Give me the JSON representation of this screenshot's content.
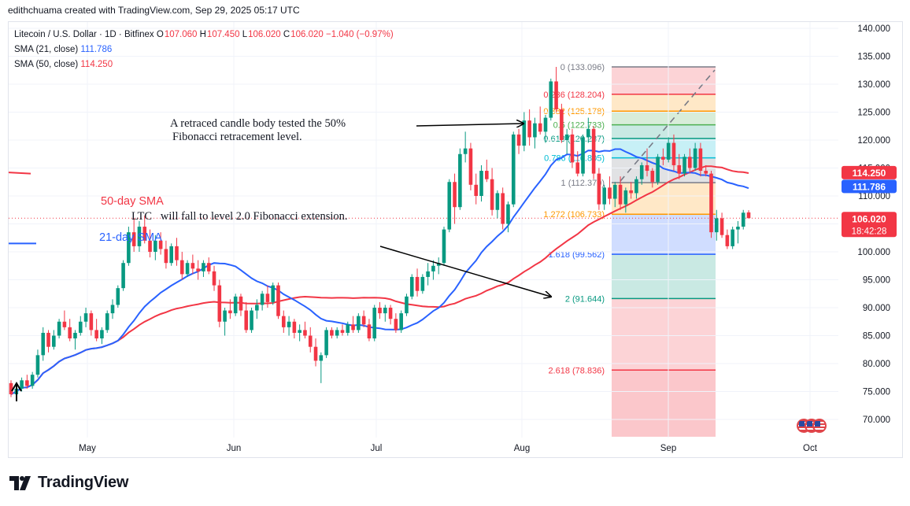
{
  "header": {
    "credit": "edithchuama created with TradingView.com, Sep 29, 2025 05:17 UTC"
  },
  "legend": {
    "symbol": "Litecoin / U.S. Dollar · 1D · Bitfinex",
    "ohlc": [
      {
        "k": "O",
        "v": "107.060"
      },
      {
        "k": "H",
        "v": "107.450"
      },
      {
        "k": "L",
        "v": "106.020"
      },
      {
        "k": "C",
        "v": "106.020"
      }
    ],
    "change": "−1.040 (−0.97%)",
    "sma21_label": "SMA (21, close)",
    "sma21_value": "111.786",
    "sma50_label": "SMA (50, close)",
    "sma50_value": "114.250"
  },
  "brand": {
    "name": "TradingView"
  },
  "colors": {
    "up": "#089981",
    "down": "#f23645",
    "sma21": "#2962ff",
    "sma50": "#f23645",
    "price_tag": "#f23645"
  },
  "chart_data": {
    "type": "candlestick",
    "y_axis_ticks": [
      "140.000",
      "135.000",
      "130.000",
      "125.000",
      "120.000",
      "115.000",
      "110.000",
      "105.000",
      "100.000",
      "95.000",
      "90.000",
      "85.000",
      "80.000",
      "75.000",
      "70.000"
    ],
    "ylim": [
      67,
      141
    ],
    "x_axis_ticks": [
      "May",
      "Jun",
      "Jul",
      "Aug",
      "Sep",
      "Oct"
    ],
    "price_labels": [
      {
        "name": "SMA 50",
        "value": "114.250",
        "color": "#f23645"
      },
      {
        "name": "SMA 21",
        "value": "111.786",
        "color": "#2962ff"
      },
      {
        "name": "Last",
        "value": "106.020",
        "countdown": "18:42:28",
        "color": "#f23645"
      }
    ],
    "fibonacci": [
      {
        "ratio": "0",
        "price": "133.096",
        "label": "0 (133.096)",
        "color": "#787b86"
      },
      {
        "ratio": "0.236",
        "price": "128.204",
        "label": "0.236 (128.204)",
        "color": "#f23645"
      },
      {
        "ratio": "0.382",
        "price": "125.178",
        "label": "0.382 (125.178)",
        "color": "#ff9800"
      },
      {
        "ratio": "0.5",
        "price": "122.733",
        "label": "0.5 (122.733)",
        "color": "#4caf50"
      },
      {
        "ratio": "0.618",
        "price": "120.287",
        "label": "0.618 (120.287)",
        "color": "#089981"
      },
      {
        "ratio": "0.786",
        "price": "116.805",
        "label": "0.786 (116.805)",
        "color": "#00bcd4"
      },
      {
        "ratio": "1",
        "price": "112.370",
        "label": "1 (112.370)",
        "color": "#787b86"
      },
      {
        "ratio": "1.272",
        "price": "106.733",
        "label": "1.272 (106.733)",
        "color": "#ff9800"
      },
      {
        "ratio": "1.618",
        "price": "99.562",
        "label": "1.618 (99.562)",
        "color": "#2962ff"
      },
      {
        "ratio": "2",
        "price": "91.644",
        "label": "2 (91.644)",
        "color": "#089981"
      },
      {
        "ratio": "2.618",
        "price": "78.836",
        "label": "2.618 (78.836)",
        "color": "#f23645"
      }
    ],
    "annotations": [
      {
        "text": "A retraced candle body tested the 50% Fibonacci retracement level.",
        "lines": [
          "A retraced candle body tested the 50%",
          "Fibonacci retracement level."
        ]
      },
      {
        "text": "LTC   will fall to level 2.0 Fibonacci extension."
      },
      {
        "text": "50-day SMA",
        "color": "#f23645"
      },
      {
        "text": "21-day SMA",
        "color": "#2962ff"
      }
    ],
    "candles": [
      [
        76.5,
        77.0,
        74.0,
        74.5
      ],
      [
        74.5,
        76.0,
        73.5,
        75.5
      ],
      [
        75.5,
        77.5,
        75.0,
        77.0
      ],
      [
        77.0,
        78.0,
        75.5,
        76.0
      ],
      [
        76.0,
        78.5,
        75.5,
        78.0
      ],
      [
        78.0,
        82.5,
        77.5,
        81.5
      ],
      [
        81.5,
        86.5,
        80.5,
        85.5
      ],
      [
        85.5,
        86.0,
        82.0,
        83.0
      ],
      [
        83.0,
        86.0,
        82.5,
        85.0
      ],
      [
        85.0,
        88.0,
        84.5,
        87.5
      ],
      [
        87.5,
        89.5,
        86.0,
        86.5
      ],
      [
        86.5,
        88.0,
        84.0,
        84.5
      ],
      [
        84.5,
        86.0,
        82.5,
        85.5
      ],
      [
        85.5,
        88.5,
        85.0,
        87.5
      ],
      [
        87.5,
        90.0,
        86.5,
        89.0
      ],
      [
        89.0,
        89.5,
        85.0,
        86.0
      ],
      [
        86.0,
        88.0,
        84.0,
        84.5
      ],
      [
        84.5,
        86.5,
        83.5,
        86.0
      ],
      [
        86.0,
        89.5,
        85.5,
        89.0
      ],
      [
        89.0,
        91.5,
        88.0,
        90.5
      ],
      [
        90.5,
        94.0,
        90.0,
        93.5
      ],
      [
        93.5,
        98.5,
        93.0,
        98.0
      ],
      [
        98.0,
        104.5,
        97.5,
        103.5
      ],
      [
        103.5,
        106.0,
        100.0,
        101.0
      ],
      [
        101.0,
        105.5,
        100.0,
        104.5
      ],
      [
        104.5,
        106.5,
        101.5,
        102.0
      ],
      [
        102.0,
        104.0,
        99.0,
        100.0
      ],
      [
        100.0,
        103.0,
        98.5,
        102.0
      ],
      [
        102.0,
        103.5,
        99.5,
        100.5
      ],
      [
        100.5,
        102.0,
        97.0,
        98.0
      ],
      [
        98.0,
        101.5,
        97.5,
        101.0
      ],
      [
        101.0,
        102.5,
        97.5,
        98.5
      ],
      [
        98.5,
        100.0,
        95.0,
        96.0
      ],
      [
        96.0,
        98.5,
        95.5,
        98.0
      ],
      [
        98.0,
        99.5,
        96.0,
        97.0
      ],
      [
        97.0,
        98.5,
        95.0,
        96.5
      ],
      [
        96.5,
        98.5,
        95.5,
        98.0
      ],
      [
        98.0,
        99.0,
        96.0,
        96.5
      ],
      [
        96.5,
        97.5,
        93.0,
        94.0
      ],
      [
        94.0,
        95.0,
        86.5,
        87.5
      ],
      [
        87.5,
        90.0,
        85.0,
        89.5
      ],
      [
        89.5,
        91.5,
        88.0,
        89.0
      ],
      [
        89.0,
        92.5,
        88.5,
        92.0
      ],
      [
        92.0,
        92.5,
        88.5,
        89.5
      ],
      [
        89.5,
        91.0,
        85.5,
        86.0
      ],
      [
        86.0,
        90.0,
        85.5,
        89.5
      ],
      [
        89.5,
        91.5,
        88.0,
        90.5
      ],
      [
        90.5,
        93.0,
        89.5,
        92.5
      ],
      [
        92.5,
        94.0,
        90.0,
        91.0
      ],
      [
        91.0,
        94.5,
        90.5,
        94.0
      ],
      [
        94.0,
        94.5,
        88.0,
        88.5
      ],
      [
        88.5,
        89.5,
        85.5,
        86.5
      ],
      [
        86.5,
        88.5,
        85.0,
        87.5
      ],
      [
        87.5,
        88.0,
        84.5,
        85.5
      ],
      [
        85.5,
        87.0,
        84.0,
        86.0
      ],
      [
        86.0,
        87.5,
        84.5,
        85.0
      ],
      [
        85.0,
        86.5,
        82.0,
        83.0
      ],
      [
        83.0,
        84.5,
        79.5,
        80.5
      ],
      [
        80.5,
        82.0,
        76.5,
        81.5
      ],
      [
        81.5,
        86.5,
        81.0,
        86.0
      ],
      [
        86.0,
        86.5,
        84.5,
        85.0
      ],
      [
        85.0,
        86.5,
        84.5,
        86.0
      ],
      [
        86.0,
        87.0,
        85.0,
        85.5
      ],
      [
        85.5,
        87.5,
        85.0,
        87.0
      ],
      [
        87.0,
        88.5,
        85.5,
        86.0
      ],
      [
        86.0,
        89.0,
        85.5,
        88.5
      ],
      [
        88.5,
        89.5,
        86.5,
        87.0
      ],
      [
        87.0,
        88.0,
        84.0,
        84.5
      ],
      [
        84.5,
        90.5,
        84.0,
        90.0
      ],
      [
        90.0,
        91.0,
        88.0,
        89.0
      ],
      [
        89.0,
        90.5,
        87.5,
        90.0
      ],
      [
        90.0,
        90.5,
        87.0,
        88.0
      ],
      [
        88.0,
        89.0,
        85.5,
        86.0
      ],
      [
        86.0,
        89.5,
        85.5,
        89.0
      ],
      [
        89.0,
        92.5,
        88.5,
        92.0
      ],
      [
        92.0,
        96.0,
        91.5,
        95.5
      ],
      [
        95.5,
        97.0,
        92.0,
        93.0
      ],
      [
        93.0,
        96.0,
        92.5,
        95.5
      ],
      [
        95.5,
        98.0,
        94.0,
        96.5
      ],
      [
        96.5,
        98.5,
        95.0,
        97.5
      ],
      [
        97.5,
        99.0,
        96.0,
        98.0
      ],
      [
        98.0,
        104.5,
        97.5,
        104.0
      ],
      [
        104.0,
        113.0,
        103.5,
        112.5
      ],
      [
        112.5,
        114.0,
        105.0,
        108.0
      ],
      [
        108.0,
        118.5,
        107.5,
        117.5
      ],
      [
        117.5,
        121.5,
        116.0,
        118.5
      ],
      [
        118.5,
        119.5,
        111.0,
        112.0
      ],
      [
        112.0,
        114.0,
        108.5,
        110.0
      ],
      [
        110.0,
        115.5,
        109.0,
        114.5
      ],
      [
        114.5,
        116.5,
        112.5,
        113.0
      ],
      [
        113.0,
        115.0,
        106.5,
        107.5
      ],
      [
        107.5,
        111.0,
        106.0,
        110.5
      ],
      [
        110.5,
        111.5,
        104.0,
        105.0
      ],
      [
        105.0,
        109.0,
        103.5,
        108.5
      ],
      [
        108.5,
        121.5,
        108.0,
        121.0
      ],
      [
        121.0,
        122.0,
        117.5,
        119.0
      ],
      [
        119.0,
        125.0,
        118.0,
        123.5
      ],
      [
        123.5,
        125.5,
        119.0,
        120.5
      ],
      [
        120.5,
        124.0,
        118.5,
        123.0
      ],
      [
        123.0,
        126.0,
        121.0,
        121.5
      ],
      [
        121.5,
        124.5,
        119.5,
        124.0
      ],
      [
        124.0,
        131.0,
        123.5,
        130.5
      ],
      [
        130.5,
        133.1,
        125.0,
        125.5
      ],
      [
        125.5,
        126.5,
        119.5,
        120.0
      ],
      [
        120.0,
        122.0,
        117.5,
        121.0
      ],
      [
        121.0,
        122.0,
        115.0,
        116.0
      ],
      [
        116.0,
        118.0,
        113.5,
        114.0
      ],
      [
        114.0,
        121.0,
        113.5,
        120.5
      ],
      [
        120.5,
        124.0,
        119.5,
        122.0
      ],
      [
        122.0,
        122.5,
        113.0,
        114.0
      ],
      [
        114.0,
        115.0,
        107.5,
        108.5
      ],
      [
        108.5,
        112.0,
        107.5,
        111.5
      ],
      [
        111.5,
        113.5,
        108.5,
        109.5
      ],
      [
        109.5,
        112.5,
        108.0,
        112.0
      ],
      [
        112.0,
        113.5,
        107.5,
        108.5
      ],
      [
        108.5,
        111.5,
        107.0,
        111.0
      ],
      [
        111.0,
        112.5,
        109.5,
        110.5
      ],
      [
        110.5,
        113.5,
        109.5,
        113.0
      ],
      [
        113.0,
        116.0,
        112.0,
        115.5
      ],
      [
        115.5,
        118.5,
        113.5,
        114.5
      ],
      [
        114.5,
        115.0,
        111.5,
        112.5
      ],
      [
        112.5,
        117.5,
        112.0,
        117.0
      ],
      [
        117.0,
        118.5,
        115.5,
        116.5
      ],
      [
        116.5,
        120.5,
        116.0,
        119.5
      ],
      [
        119.5,
        121.0,
        114.5,
        115.5
      ],
      [
        115.5,
        117.5,
        113.0,
        114.0
      ],
      [
        114.0,
        117.5,
        113.5,
        117.0
      ],
      [
        117.0,
        118.5,
        114.0,
        115.0
      ],
      [
        115.0,
        119.5,
        114.5,
        118.5
      ],
      [
        118.5,
        119.5,
        113.5,
        114.5
      ],
      [
        114.5,
        115.5,
        113.5,
        114.0
      ],
      [
        114.0,
        114.5,
        102.5,
        103.5
      ],
      [
        103.5,
        107.5,
        102.0,
        106.0
      ],
      [
        106.0,
        107.0,
        102.5,
        103.0
      ],
      [
        103.0,
        104.0,
        100.5,
        101.0
      ],
      [
        101.0,
        104.5,
        100.5,
        104.0
      ],
      [
        104.0,
        105.5,
        101.5,
        104.5
      ],
      [
        104.5,
        107.5,
        104.0,
        107.0
      ],
      [
        107.06,
        107.45,
        106.02,
        106.02
      ]
    ]
  }
}
